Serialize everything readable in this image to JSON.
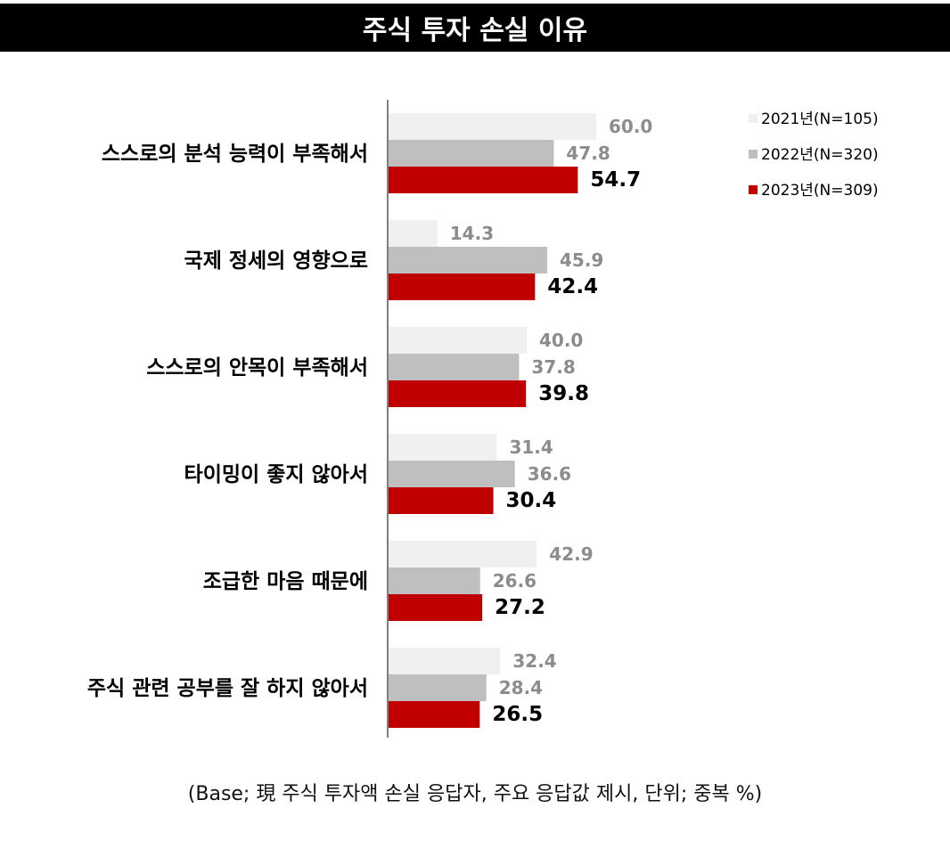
{
  "title": "주식 투자 손실 이유",
  "footnote": "(Base; 現 주식 투자액 손실 응답자, 주요 응답값 제시, 단위; 중복 %)",
  "colors": {
    "series_2021": "#f0f0f0",
    "series_2022": "#bfbfbf",
    "series_2023": "#c00000",
    "label_prior": "#8c8c8c",
    "label_2023": "#000000",
    "axis": "#808080"
  },
  "chart_data": {
    "type": "bar",
    "orientation": "horizontal",
    "categories": [
      "스스로의 분석 능력이 부족해서",
      "국제 정세의 영향으로",
      "스스로의 안목이 부족해서",
      "타이밍이 좋지 않아서",
      "조급한 마음 때문에",
      "주식 관련 공부를 잘 하지 않아서"
    ],
    "series": [
      {
        "name": "2021년(N=105)",
        "values": [
          60.0,
          14.3,
          40.0,
          31.4,
          42.9,
          32.4
        ]
      },
      {
        "name": "2022년(N=320)",
        "values": [
          47.8,
          45.9,
          37.8,
          36.6,
          26.6,
          28.4
        ]
      },
      {
        "name": "2023년(N=309)",
        "values": [
          54.7,
          42.4,
          39.8,
          30.4,
          27.2,
          26.5
        ]
      }
    ],
    "value_labels": [
      [
        "60.0",
        "14.3",
        "40.0",
        "31.4",
        "42.9",
        "32.4"
      ],
      [
        "47.8",
        "45.9",
        "37.8",
        "36.6",
        "26.6",
        "28.4"
      ],
      [
        "54.7",
        "42.4",
        "39.8",
        "30.4",
        "27.2",
        "26.5"
      ]
    ],
    "xlim": [
      0,
      100
    ],
    "grid": false,
    "legend_position": "top-right"
  }
}
